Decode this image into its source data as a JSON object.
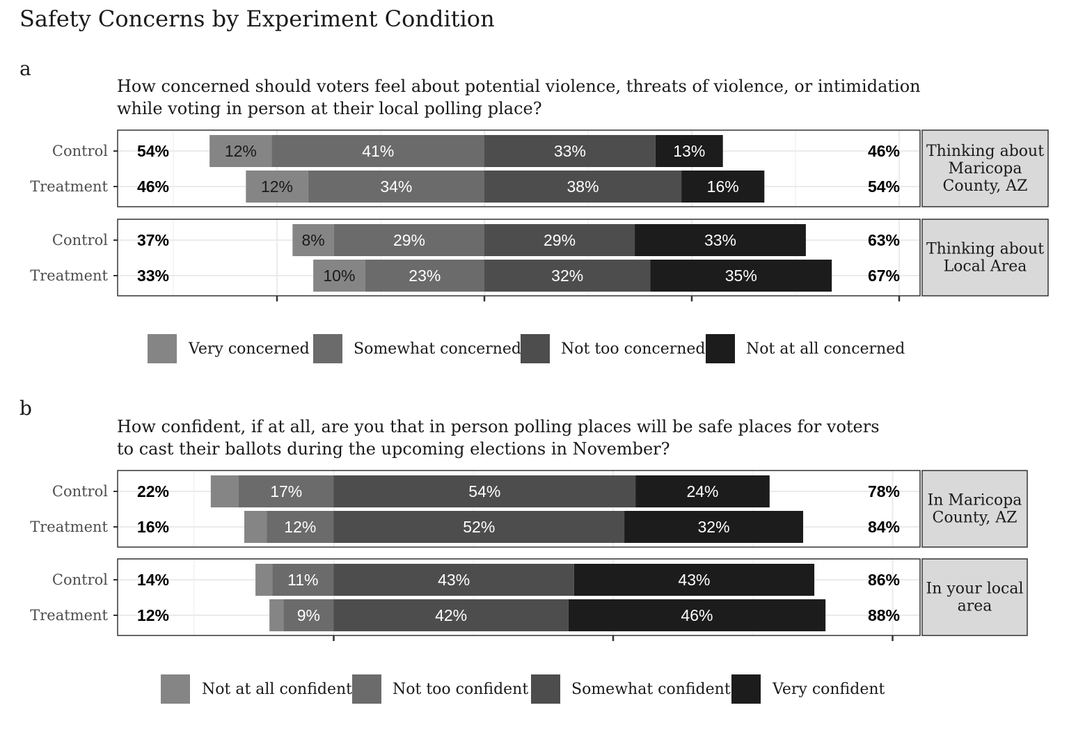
{
  "title": "Safety Concerns by Experiment Condition",
  "colors": {
    "level1": "#858585",
    "level2": "#6b6b6b",
    "level3": "#4d4d4d",
    "level4": "#1c1c1c",
    "strip_bg": "#d9d9d9",
    "panel_border": "#333333",
    "grid": "#ebebeb"
  },
  "chart_data": [
    {
      "type": "bar",
      "tag": "a",
      "subtitle_lines": [
        "How concerned should voters feel about potential violence, threats of violence, or intimidation",
        "while voting in person at their local polling place?"
      ],
      "legend": [
        "Very concerned",
        "Somewhat concerned",
        "Not too concerned",
        "Not at all concerned"
      ],
      "facets": [
        {
          "strip_lines": [
            "Thinking about",
            "Maricopa",
            "County, AZ"
          ],
          "rows": [
            {
              "label": "Control",
              "values": [
                12,
                41,
                33,
                13
              ],
              "left_total": "54%",
              "right_total": "46%"
            },
            {
              "label": "Treatment",
              "values": [
                12,
                34,
                38,
                16
              ],
              "left_total": "46%",
              "right_total": "54%"
            }
          ]
        },
        {
          "strip_lines": [
            "Thinking about",
            "Local Area"
          ],
          "rows": [
            {
              "label": "Control",
              "values": [
                8,
                29,
                29,
                33
              ],
              "left_total": "37%",
              "right_total": "63%"
            },
            {
              "label": "Treatment",
              "values": [
                10,
                23,
                32,
                35
              ],
              "left_total": "33%",
              "right_total": "67%"
            }
          ]
        }
      ]
    },
    {
      "type": "bar",
      "tag": "b",
      "subtitle_lines": [
        "How confident, if at all, are you that in person polling places will be safe places for voters",
        "to cast their ballots during the upcoming elections in November?"
      ],
      "legend": [
        "Not at all confident",
        "Not too confident",
        "Somewhat confident",
        "Very confident"
      ],
      "facets": [
        {
          "strip_lines": [
            "In Maricopa",
            "County, AZ"
          ],
          "rows": [
            {
              "label": "Control",
              "values": [
                5,
                17,
                54,
                24
              ],
              "left_total": "22%",
              "right_total": "78%"
            },
            {
              "label": "Treatment",
              "values": [
                4,
                12,
                52,
                32
              ],
              "left_total": "16%",
              "right_total": "84%"
            }
          ]
        },
        {
          "strip_lines": [
            "In your local",
            "area"
          ],
          "rows": [
            {
              "label": "Control",
              "values": [
                3,
                11,
                43,
                43
              ],
              "left_total": "14%",
              "right_total": "86%"
            },
            {
              "label": "Treatment",
              "values": [
                2.5,
                9,
                42,
                46
              ],
              "left_total": "12%",
              "right_total": "88%"
            }
          ]
        }
      ]
    }
  ]
}
